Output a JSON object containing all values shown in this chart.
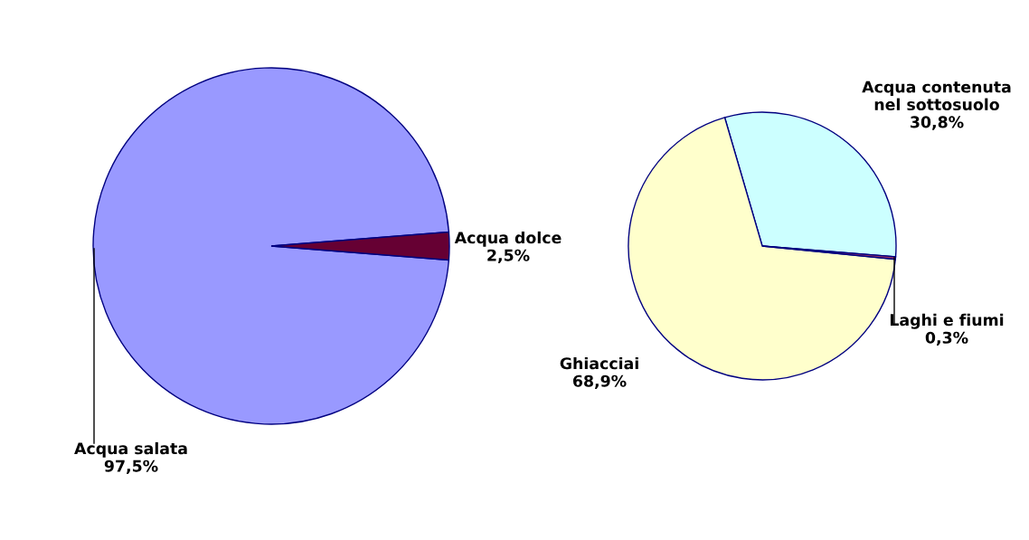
{
  "chart_data": [
    {
      "type": "pie",
      "categories": [
        "Acqua salata",
        "Acqua dolce"
      ],
      "values": [
        97.5,
        2.5
      ],
      "colors": [
        "#9999ff",
        "#660033"
      ],
      "value_labels": [
        "97,5%",
        "2,5%"
      ]
    },
    {
      "type": "pie",
      "categories": [
        "Acqua contenuta nel sottosuolo",
        "Ghiacciai",
        "Laghi e fiumi"
      ],
      "values": [
        30.8,
        68.9,
        0.3
      ],
      "colors": [
        "#ccffff",
        "#ffffcc",
        "#993366"
      ],
      "value_labels": [
        "30,8%",
        "68,9%",
        "0,3%"
      ]
    }
  ]
}
